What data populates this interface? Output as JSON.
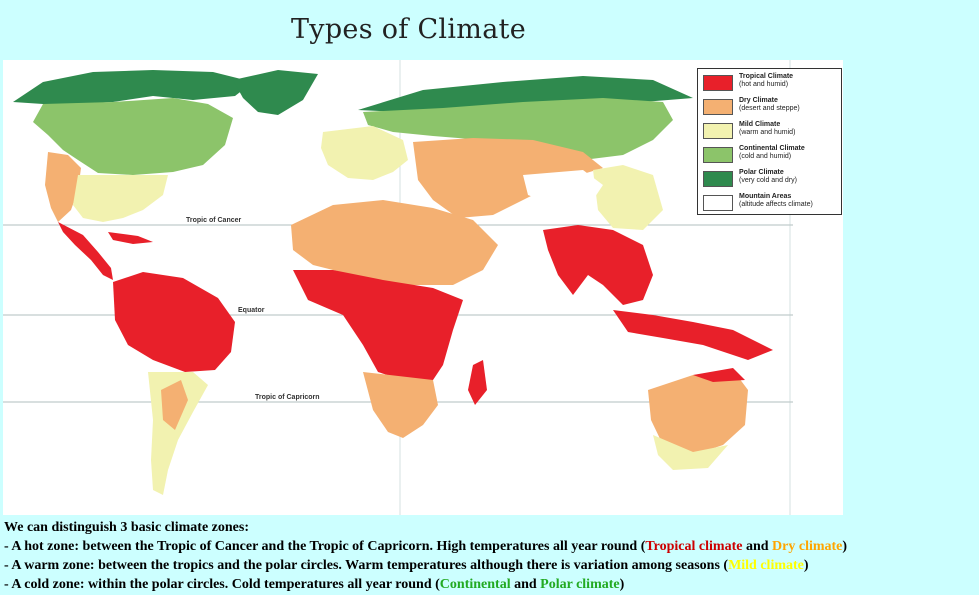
{
  "page": {
    "title": "Types of Climate"
  },
  "map": {
    "lines": {
      "cancer": "Tropic of Cancer",
      "equator": "Equator",
      "capricorn": "Tropic of Capricorn"
    },
    "colors": {
      "tropical": "#e8202a",
      "dry": "#f4b072",
      "mild": "#f2f2b0",
      "continental": "#8cc46a",
      "polar": "#2f8a4e",
      "mountain": "#ffffff"
    },
    "legend": [
      {
        "title": "Tropical Climate",
        "sub": "(hot and humid)",
        "color": "#e8202a"
      },
      {
        "title": "Dry Climate",
        "sub": "(desert and steppe)",
        "color": "#f4b072"
      },
      {
        "title": "Mild Climate",
        "sub": "(warm and humid)",
        "color": "#f2f2b0"
      },
      {
        "title": "Continental Climate",
        "sub": "(cold and humid)",
        "color": "#8cc46a"
      },
      {
        "title": "Polar Climate",
        "sub": "(very cold and dry)",
        "color": "#2f8a4e"
      },
      {
        "title": "Mountain Areas",
        "sub": "(altitude affects climate)",
        "color": "#ffffff"
      }
    ]
  },
  "text": {
    "intro": "We can distinguish 3 basic climate zones:",
    "hot": {
      "prefix": "- A hot zone: between the Tropic of Cancer and the Tropic of Capricorn. High temperatures all year round (",
      "tropical": "Tropical climate",
      "and": " and ",
      "dry": "Dry climate",
      "suffix": ")"
    },
    "warm": {
      "prefix": "- A warm zone: between the tropics and the polar circles. Warm temperatures although there is variation among seasons (",
      "mild": "Mild climate",
      "suffix": ")"
    },
    "cold": {
      "prefix": "- A cold zone: within the polar circles. Cold temperatures all year round (",
      "continental": "Continental",
      "and": " and ",
      "polar": "Polar climate",
      "suffix": ")"
    }
  }
}
